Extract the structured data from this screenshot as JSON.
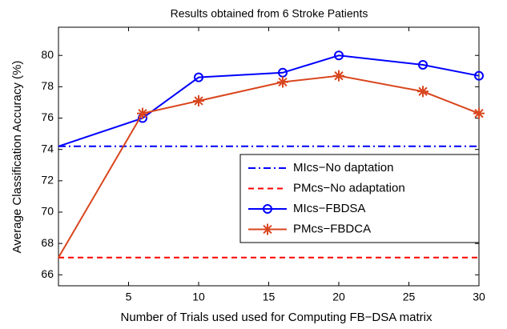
{
  "chart_data": {
    "type": "line",
    "title": "Results obtained from 6 Stroke Patients",
    "xlabel": "Number of Trials used used for Computing FB−DSA matrix",
    "ylabel": "Average Classification Accuracy (%)",
    "xlim": [
      0,
      30
    ],
    "xticks": [
      5,
      10,
      15,
      20,
      25,
      30
    ],
    "ylim": [
      65.3,
      81.8
    ],
    "yticks": [
      66,
      68,
      70,
      72,
      74,
      76,
      78,
      80
    ],
    "legend": "lower right",
    "series": [
      {
        "name": "MIcs−No daptation",
        "color": "#0000ff",
        "linestyle": "-.",
        "marker": "none",
        "x": [
          0,
          30
        ],
        "values": [
          74.2,
          74.2
        ]
      },
      {
        "name": "PMcs−No adaptation",
        "color": "#ff0000",
        "linestyle": "--",
        "marker": "none",
        "x": [
          0,
          30
        ],
        "values": [
          67.1,
          67.1
        ]
      },
      {
        "name": "MIcs−FBDSA",
        "color": "#0000ff",
        "linestyle": "-",
        "marker": "o",
        "x": [
          0,
          6,
          10,
          16,
          20,
          26,
          30
        ],
        "values": [
          74.2,
          76.0,
          78.6,
          78.9,
          80.0,
          79.4,
          78.7
        ]
      },
      {
        "name": "PMcs−FBDCA",
        "color": "#d9461e",
        "linestyle": "-",
        "marker": "*",
        "x": [
          0,
          6,
          10,
          16,
          20,
          26,
          30
        ],
        "values": [
          67.1,
          76.3,
          77.1,
          78.3,
          78.7,
          77.7,
          76.3
        ]
      }
    ]
  }
}
